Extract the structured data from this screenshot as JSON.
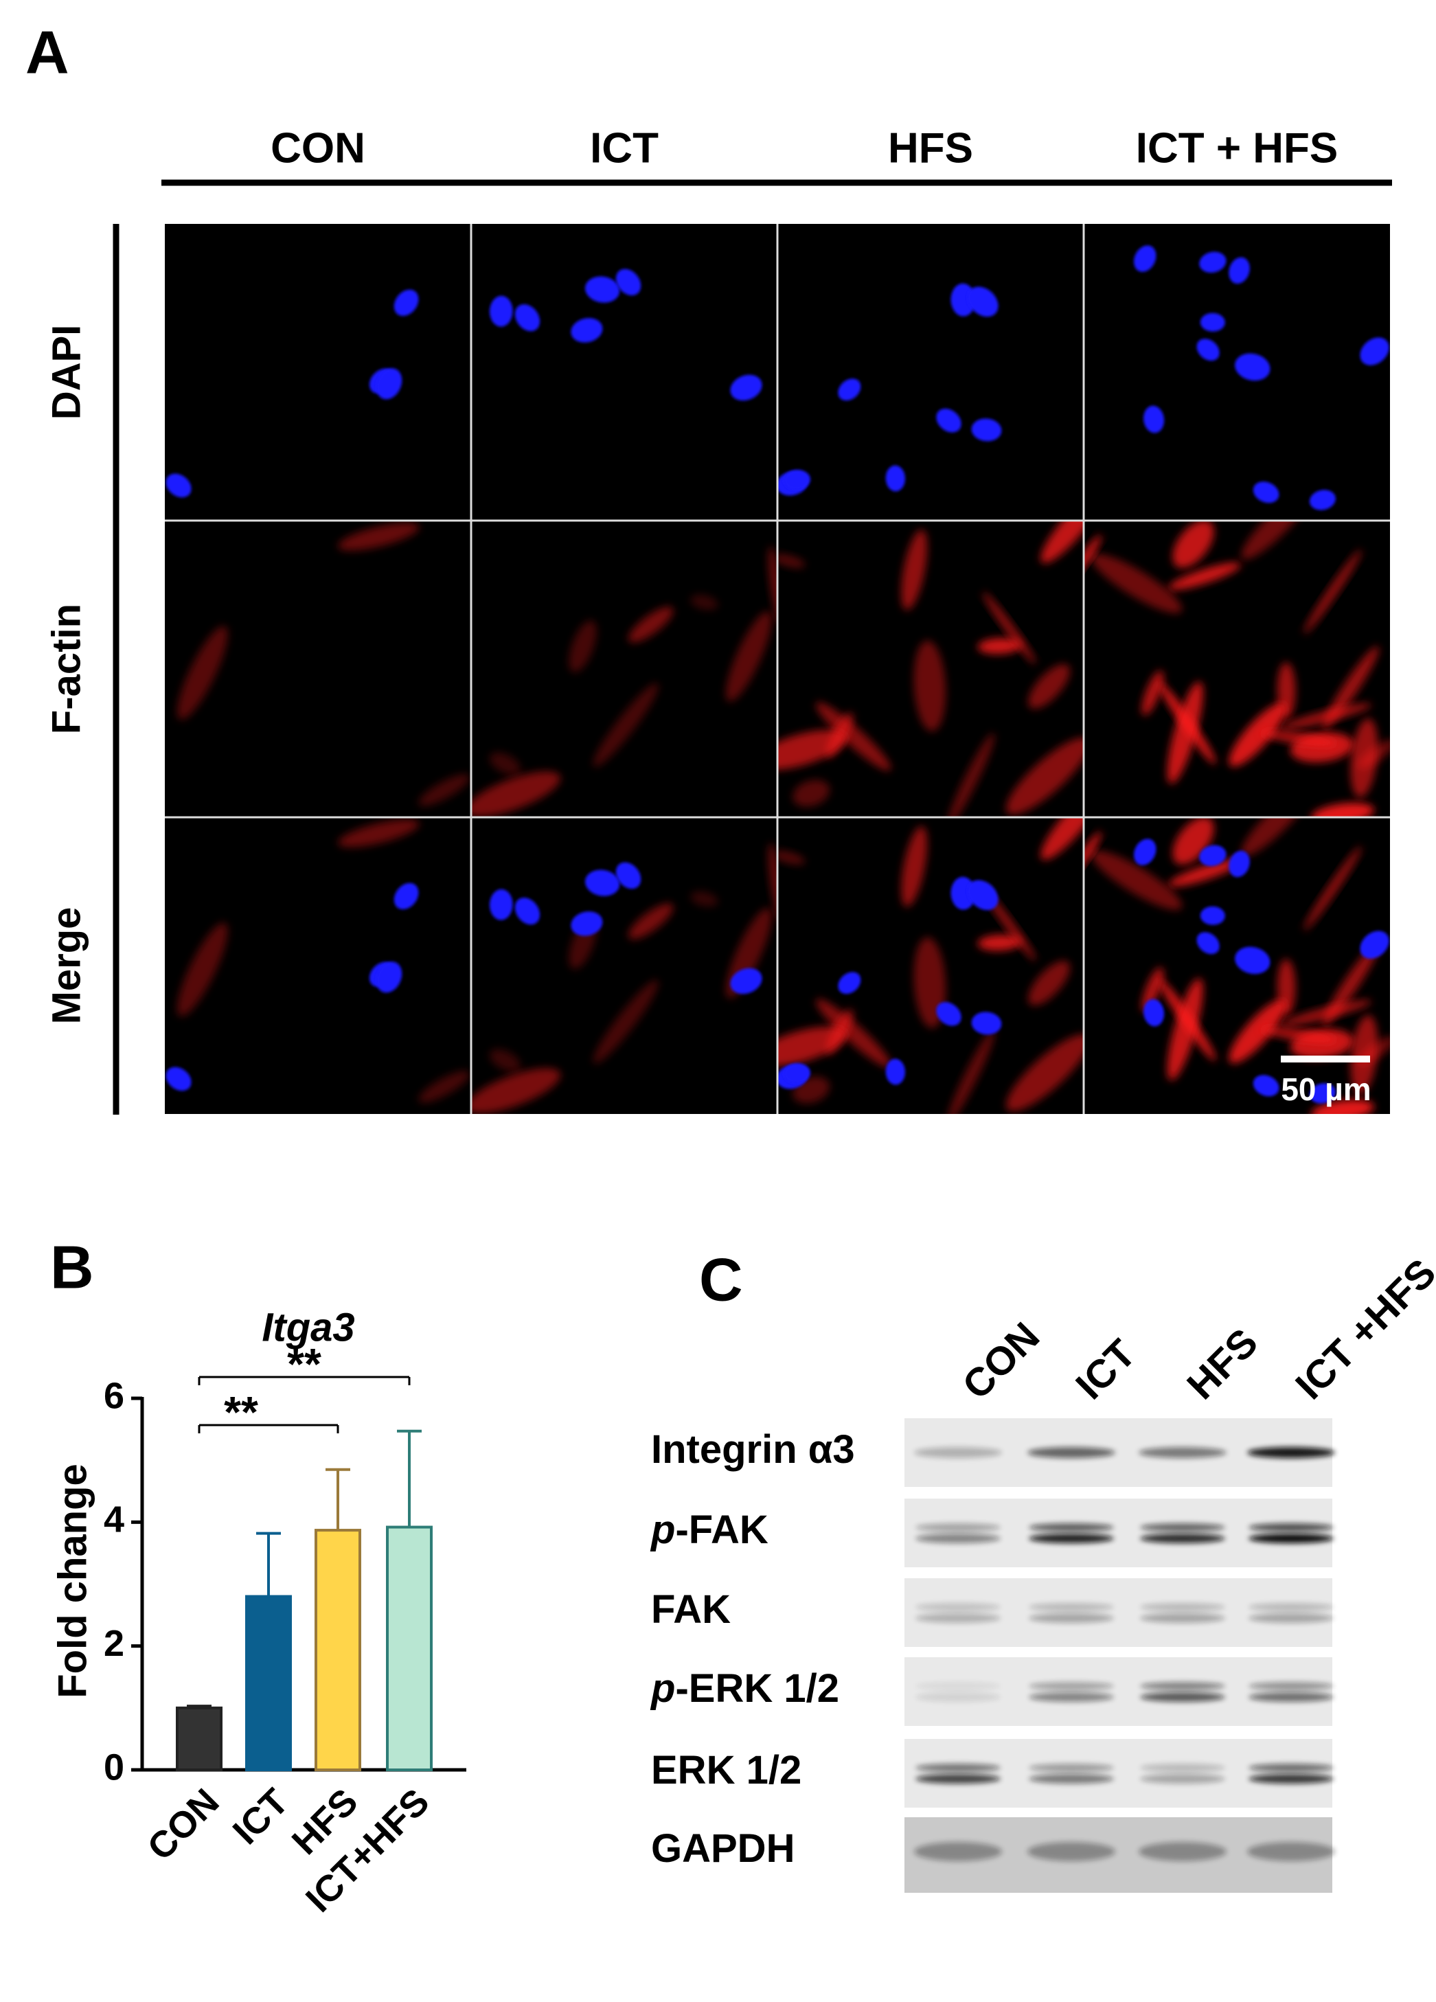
{
  "panel_a": {
    "panel_label": "A",
    "columns": [
      "CON",
      "ICT",
      "HFS",
      "ICT + HFS"
    ],
    "rows": [
      "DAPI",
      "F-actin",
      "Merge"
    ],
    "scale_bar": "50 µm"
  },
  "chart_data": {
    "type": "bar",
    "panel_label": "B",
    "title": "Itga3",
    "ylabel": "Fold change",
    "categories": [
      "CON",
      "ICT",
      "HFS",
      "ICT+HFS"
    ],
    "values": [
      1.0,
      2.8,
      3.87,
      3.92
    ],
    "errors": [
      0.03,
      1.02,
      0.98,
      1.55
    ],
    "colors": [
      "#333333",
      "#0b5f8f",
      "#ffd54a",
      "#b8e6d2"
    ],
    "error_colors": [
      "#222222",
      "#0b5f8f",
      "#9b7a3a",
      "#2e7d77"
    ],
    "ylim": [
      0,
      6
    ],
    "yticks": [
      0,
      2,
      4,
      6
    ],
    "annotations": [
      "**",
      "**"
    ]
  },
  "panel_c": {
    "panel_label": "C",
    "lanes": [
      "CON",
      "ICT",
      "HFS",
      "ICT +HFS"
    ],
    "rows": [
      {
        "label": "Integrin α3"
      },
      {
        "italic": "p",
        "label": "-FAK"
      },
      {
        "label": "FAK"
      },
      {
        "italic": "p",
        "label": "-ERK 1/2"
      },
      {
        "label": "ERK 1/2"
      },
      {
        "label": "GAPDH"
      }
    ]
  }
}
